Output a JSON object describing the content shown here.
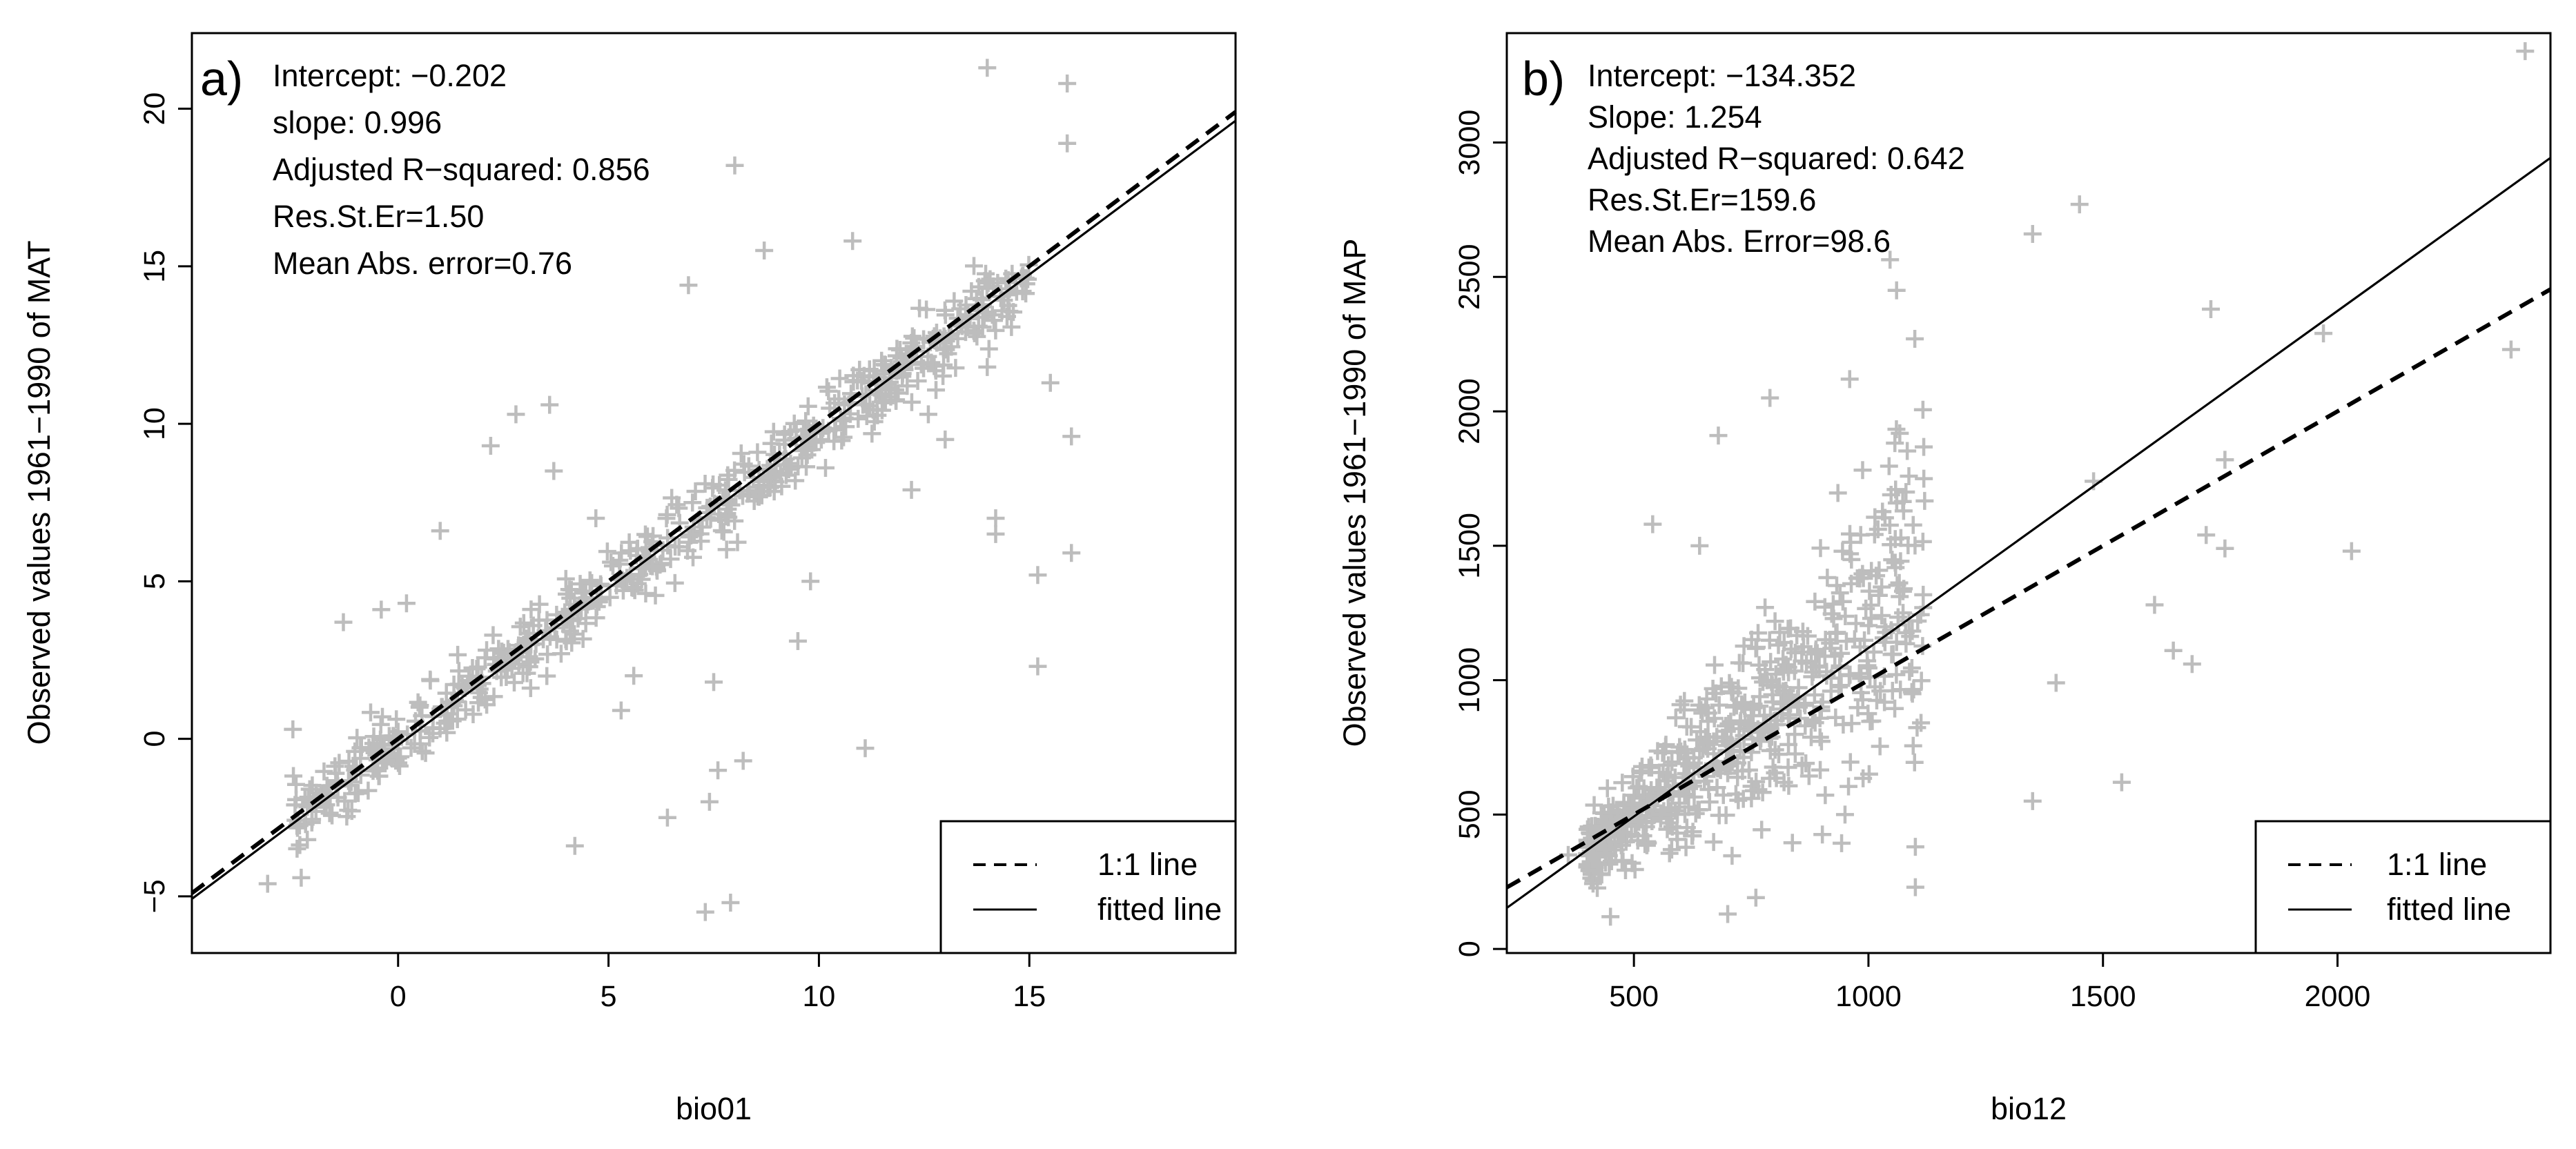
{
  "chart_data": [
    {
      "type": "scatter",
      "panel_label": "a)",
      "xlabel": "bio01",
      "ylabel": "Observed values 1961−1990 of MAT",
      "xlim": [
        -4.9,
        19.9
      ],
      "ylim": [
        -6.8,
        22.4
      ],
      "xticks": [
        0,
        5,
        10,
        15
      ],
      "yticks": [
        -5,
        0,
        5,
        10,
        15,
        20
      ],
      "tick_labels_x": [
        "0",
        "5",
        "10",
        "15"
      ],
      "tick_labels_y": [
        "−5",
        "0",
        "5",
        "10",
        "15",
        "20"
      ],
      "stats": [
        "Intercept: −0.202",
        "slope: 0.996",
        "Adjusted R−squared: 0.856",
        "Res.St.Er=1.50",
        "Mean Abs. error=0.76"
      ],
      "intercept": -0.202,
      "slope": 0.996,
      "legend": {
        "position": "bottom-right",
        "entries": [
          {
            "label": "1:1 line",
            "style": "dashed"
          },
          {
            "label": "fitted line",
            "style": "solid"
          }
        ]
      },
      "point_color": "#bdbdbd",
      "line_color": "#000000",
      "points": [
        {
          "x": 8.0,
          "y": 18.2
        },
        {
          "x": 14.0,
          "y": 21.3
        },
        {
          "x": 15.9,
          "y": 20.8
        },
        {
          "x": 15.9,
          "y": 18.9
        },
        {
          "x": 10.8,
          "y": 15.8
        },
        {
          "x": 8.7,
          "y": 15.5
        },
        {
          "x": 6.9,
          "y": 14.4
        },
        {
          "x": 13.0,
          "y": 12.7
        },
        {
          "x": 14.0,
          "y": 11.8
        },
        {
          "x": 15.5,
          "y": 11.3
        },
        {
          "x": 16.0,
          "y": 9.6
        },
        {
          "x": 14.2,
          "y": 7.0
        },
        {
          "x": 14.2,
          "y": 6.5
        },
        {
          "x": 16.0,
          "y": 5.9
        },
        {
          "x": 15.2,
          "y": 5.2
        },
        {
          "x": 15.2,
          "y": 2.3
        },
        {
          "x": 11.1,
          "y": -0.3
        },
        {
          "x": 8.2,
          "y": -0.7
        },
        {
          "x": 7.6,
          "y": -1.0
        },
        {
          "x": 7.4,
          "y": -2.0
        },
        {
          "x": 6.4,
          "y": -2.5
        },
        {
          "x": 4.2,
          "y": -3.4
        },
        {
          "x": -3.1,
          "y": -4.6
        },
        {
          "x": 7.3,
          "y": -5.5
        },
        {
          "x": 7.9,
          "y": -5.2
        },
        {
          "x": 2.2,
          "y": 9.3
        },
        {
          "x": 2.8,
          "y": 10.3
        },
        {
          "x": 3.6,
          "y": 10.6
        },
        {
          "x": 1.0,
          "y": 6.6
        },
        {
          "x": -1.3,
          "y": 3.7
        },
        {
          "x": -0.4,
          "y": 4.1
        },
        {
          "x": 0.2,
          "y": 4.3
        },
        {
          "x": -2.5,
          "y": 0.3
        },
        {
          "x": -2.1,
          "y": -1.6
        },
        {
          "x": 5.6,
          "y": 2.0
        },
        {
          "x": 5.3,
          "y": 0.9
        },
        {
          "x": 9.8,
          "y": 5.0
        },
        {
          "x": 12.2,
          "y": 7.9
        },
        {
          "x": 13.0,
          "y": 9.5
        },
        {
          "x": 12.6,
          "y": 10.3
        },
        {
          "x": 4.7,
          "y": 7.0
        },
        {
          "x": 3.7,
          "y": 8.5
        },
        {
          "x": 7.5,
          "y": 1.8
        },
        {
          "x": 9.5,
          "y": 3.1
        }
      ]
    },
    {
      "type": "scatter",
      "panel_label": "b)",
      "xlabel": "bio12",
      "ylabel": "Observed values 1961−1990 of MAP",
      "xlim": [
        229,
        2454
      ],
      "ylim": [
        -15,
        3407
      ],
      "xticks": [
        500,
        1000,
        1500,
        2000
      ],
      "yticks": [
        0,
        500,
        1000,
        1500,
        2000,
        2500,
        3000
      ],
      "tick_labels_x": [
        "500",
        "1000",
        "1500",
        "2000"
      ],
      "tick_labels_y": [
        "0",
        "500",
        "1000",
        "1500",
        "2000",
        "2500",
        "3000"
      ],
      "stats": [
        "Intercept: −134.352",
        "Slope: 1.254",
        "Adjusted R−squared: 0.642",
        "Res.St.Er=159.6",
        "Mean Abs. Error=98.6"
      ],
      "intercept": -134.352,
      "slope": 1.254,
      "legend": {
        "position": "bottom-right",
        "entries": [
          {
            "label": "1:1 line",
            "style": "dashed"
          },
          {
            "label": "fitted line",
            "style": "solid"
          }
        ]
      },
      "point_color": "#bdbdbd",
      "line_color": "#000000",
      "points": [
        {
          "x": 2400,
          "y": 3340
        },
        {
          "x": 1450,
          "y": 2770
        },
        {
          "x": 1350,
          "y": 2660
        },
        {
          "x": 1730,
          "y": 2380
        },
        {
          "x": 1970,
          "y": 2290
        },
        {
          "x": 2370,
          "y": 2230
        },
        {
          "x": 1760,
          "y": 1820
        },
        {
          "x": 1480,
          "y": 1740
        },
        {
          "x": 1720,
          "y": 1540
        },
        {
          "x": 1760,
          "y": 1490
        },
        {
          "x": 2030,
          "y": 1480
        },
        {
          "x": 1610,
          "y": 1280
        },
        {
          "x": 1650,
          "y": 1110
        },
        {
          "x": 1690,
          "y": 1060
        },
        {
          "x": 1400,
          "y": 990
        },
        {
          "x": 1540,
          "y": 620
        },
        {
          "x": 1350,
          "y": 550
        },
        {
          "x": 1100,
          "y": 380
        },
        {
          "x": 1100,
          "y": 230
        },
        {
          "x": 450,
          "y": 120
        },
        {
          "x": 700,
          "y": 130
        },
        {
          "x": 680,
          "y": 1910
        },
        {
          "x": 790,
          "y": 2050
        },
        {
          "x": 540,
          "y": 1580
        },
        {
          "x": 640,
          "y": 1500
        },
        {
          "x": 1060,
          "y": 2450
        },
        {
          "x": 960,
          "y": 2120
        },
        {
          "x": 1080,
          "y": 1700
        },
        {
          "x": 360,
          "y": 350
        },
        {
          "x": 420,
          "y": 380
        },
        {
          "x": 820,
          "y": 620
        },
        {
          "x": 950,
          "y": 500
        }
      ]
    }
  ]
}
